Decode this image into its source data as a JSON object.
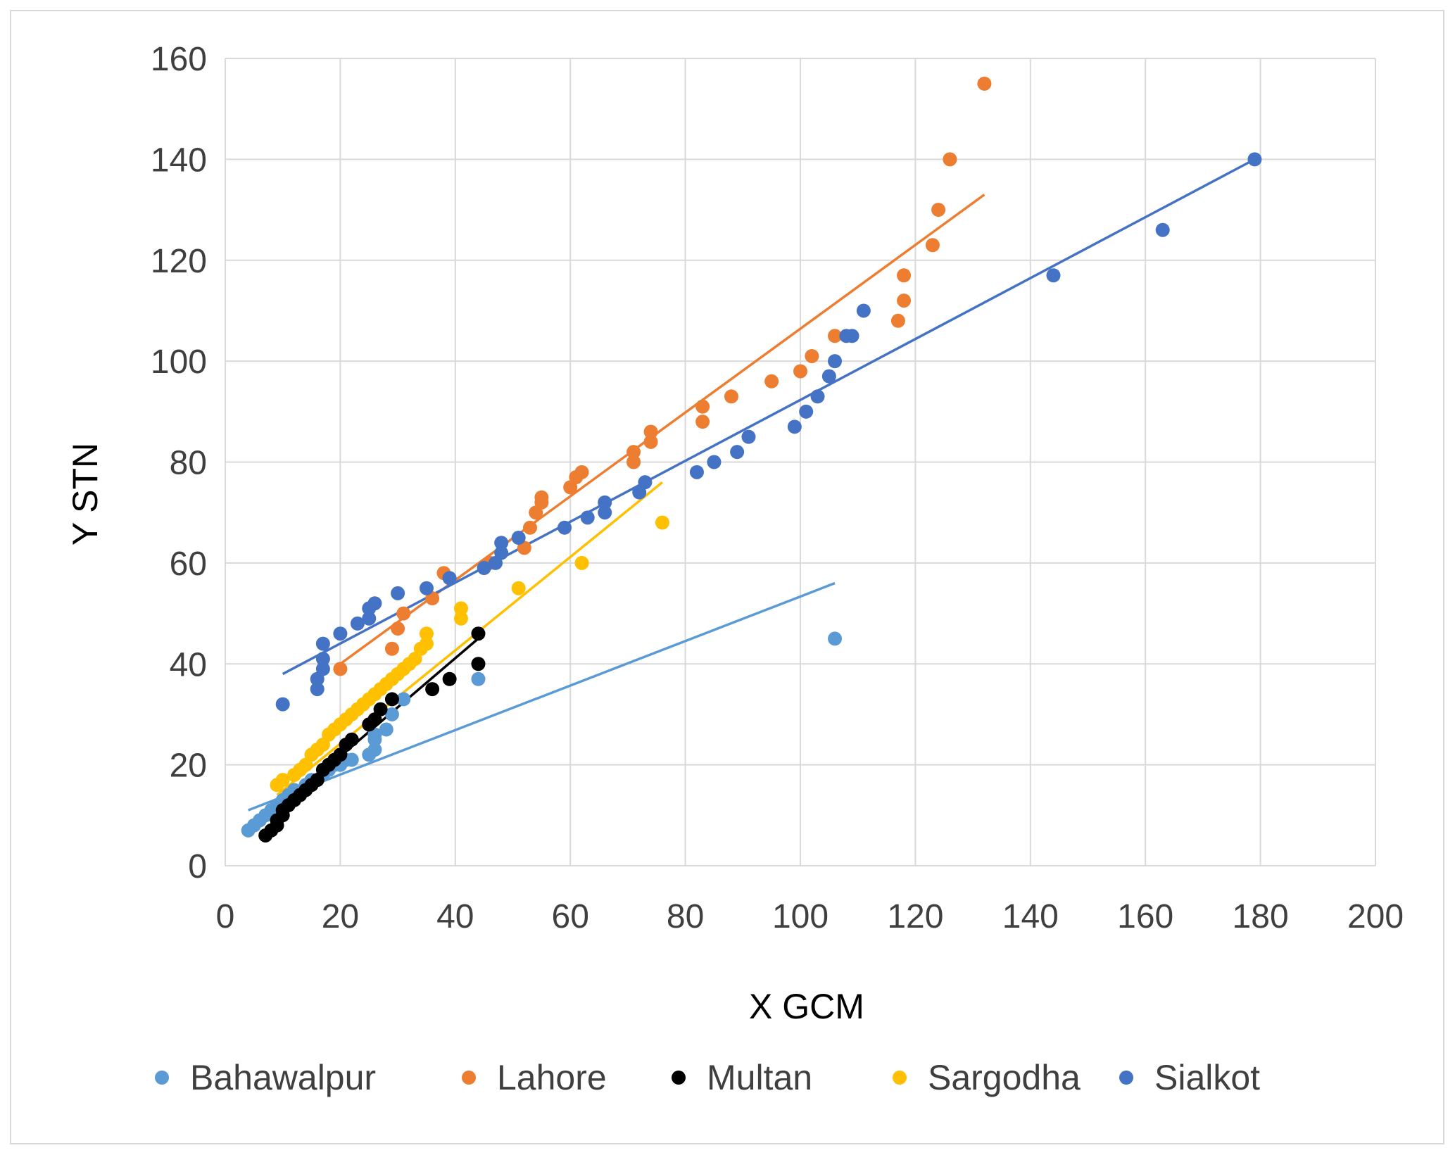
{
  "chart_data": {
    "type": "scatter",
    "title": "",
    "xlabel": "X GCM",
    "ylabel": "Y STN",
    "xlim": [
      0,
      200
    ],
    "ylim": [
      0,
      160
    ],
    "x_ticks": [
      "0",
      "20",
      "40",
      "60",
      "80",
      "100",
      "120",
      "140",
      "160",
      "180",
      "200"
    ],
    "y_ticks": [
      "0",
      "20",
      "40",
      "60",
      "80",
      "100",
      "120",
      "140",
      "160"
    ],
    "grid": true,
    "legend_position": "bottom",
    "series": [
      {
        "name": "Bahawalpur",
        "color": "#5b9bd5",
        "points": [
          [
            4,
            7
          ],
          [
            5,
            8
          ],
          [
            6,
            9
          ],
          [
            7,
            10
          ],
          [
            8,
            11
          ],
          [
            9,
            12
          ],
          [
            10,
            13
          ],
          [
            11,
            14
          ],
          [
            12,
            15
          ],
          [
            14,
            16
          ],
          [
            15,
            17
          ],
          [
            16,
            17
          ],
          [
            17,
            18
          ],
          [
            18,
            19
          ],
          [
            19,
            20
          ],
          [
            20,
            20
          ],
          [
            21,
            21
          ],
          [
            22,
            21
          ],
          [
            25,
            22
          ],
          [
            26,
            23
          ],
          [
            26,
            25
          ],
          [
            26,
            26
          ],
          [
            28,
            27
          ],
          [
            29,
            30
          ],
          [
            31,
            33
          ],
          [
            44,
            37
          ],
          [
            106,
            45
          ]
        ],
        "trend": [
          [
            4,
            11
          ],
          [
            106,
            56
          ]
        ]
      },
      {
        "name": "Lahore",
        "color": "#ed7d31",
        "points": [
          [
            20,
            39
          ],
          [
            29,
            43
          ],
          [
            30,
            47
          ],
          [
            31,
            50
          ],
          [
            36,
            53
          ],
          [
            38,
            58
          ],
          [
            46,
            60
          ],
          [
            52,
            63
          ],
          [
            53,
            67
          ],
          [
            54,
            70
          ],
          [
            55,
            72
          ],
          [
            55,
            73
          ],
          [
            60,
            75
          ],
          [
            61,
            77
          ],
          [
            62,
            78
          ],
          [
            71,
            80
          ],
          [
            71,
            82
          ],
          [
            74,
            84
          ],
          [
            74,
            86
          ],
          [
            83,
            88
          ],
          [
            83,
            91
          ],
          [
            88,
            93
          ],
          [
            95,
            96
          ],
          [
            100,
            98
          ],
          [
            102,
            101
          ],
          [
            106,
            105
          ],
          [
            117,
            108
          ],
          [
            118,
            112
          ],
          [
            118,
            117
          ],
          [
            123,
            123
          ],
          [
            124,
            130
          ],
          [
            126,
            140
          ],
          [
            132,
            155
          ]
        ],
        "trend": [
          [
            20,
            40
          ],
          [
            132,
            133
          ]
        ]
      },
      {
        "name": "Multan",
        "color": "#000000",
        "points": [
          [
            7,
            6
          ],
          [
            8,
            7
          ],
          [
            9,
            8
          ],
          [
            9,
            9
          ],
          [
            10,
            10
          ],
          [
            10,
            11
          ],
          [
            11,
            12
          ],
          [
            12,
            13
          ],
          [
            13,
            14
          ],
          [
            14,
            15
          ],
          [
            15,
            16
          ],
          [
            16,
            17
          ],
          [
            17,
            19
          ],
          [
            18,
            20
          ],
          [
            19,
            21
          ],
          [
            20,
            22
          ],
          [
            21,
            24
          ],
          [
            22,
            25
          ],
          [
            25,
            28
          ],
          [
            26,
            29
          ],
          [
            27,
            31
          ],
          [
            29,
            33
          ],
          [
            36,
            35
          ],
          [
            39,
            37
          ],
          [
            44,
            40
          ],
          [
            44,
            46
          ]
        ],
        "trend": [
          [
            8,
            10
          ],
          [
            45,
            46
          ]
        ]
      },
      {
        "name": "Sargodha",
        "color": "#ffc000",
        "points": [
          [
            9,
            16
          ],
          [
            10,
            17
          ],
          [
            12,
            18
          ],
          [
            13,
            19
          ],
          [
            14,
            20
          ],
          [
            15,
            22
          ],
          [
            16,
            23
          ],
          [
            17,
            24
          ],
          [
            18,
            26
          ],
          [
            19,
            27
          ],
          [
            20,
            28
          ],
          [
            21,
            29
          ],
          [
            22,
            30
          ],
          [
            23,
            31
          ],
          [
            24,
            32
          ],
          [
            25,
            33
          ],
          [
            26,
            34
          ],
          [
            27,
            35
          ],
          [
            28,
            36
          ],
          [
            29,
            37
          ],
          [
            30,
            38
          ],
          [
            31,
            39
          ],
          [
            32,
            40
          ],
          [
            33,
            41
          ],
          [
            34,
            43
          ],
          [
            35,
            44
          ],
          [
            35,
            46
          ],
          [
            41,
            49
          ],
          [
            41,
            51
          ],
          [
            51,
            55
          ],
          [
            62,
            60
          ],
          [
            76,
            68
          ]
        ],
        "trend": [
          [
            9,
            14
          ],
          [
            76,
            76
          ]
        ]
      },
      {
        "name": "Sialkot",
        "color": "#4472c4",
        "points": [
          [
            10,
            32
          ],
          [
            16,
            35
          ],
          [
            16,
            37
          ],
          [
            17,
            39
          ],
          [
            17,
            41
          ],
          [
            17,
            44
          ],
          [
            20,
            46
          ],
          [
            23,
            48
          ],
          [
            25,
            49
          ],
          [
            25,
            51
          ],
          [
            26,
            52
          ],
          [
            30,
            54
          ],
          [
            35,
            55
          ],
          [
            39,
            57
          ],
          [
            45,
            59
          ],
          [
            47,
            60
          ],
          [
            48,
            62
          ],
          [
            48,
            64
          ],
          [
            51,
            65
          ],
          [
            59,
            67
          ],
          [
            63,
            69
          ],
          [
            66,
            70
          ],
          [
            66,
            72
          ],
          [
            72,
            74
          ],
          [
            73,
            76
          ],
          [
            82,
            78
          ],
          [
            85,
            80
          ],
          [
            89,
            82
          ],
          [
            91,
            85
          ],
          [
            99,
            87
          ],
          [
            101,
            90
          ],
          [
            103,
            93
          ],
          [
            105,
            97
          ],
          [
            106,
            100
          ],
          [
            108,
            105
          ],
          [
            109,
            105
          ],
          [
            111,
            110
          ],
          [
            144,
            117
          ],
          [
            163,
            126
          ],
          [
            179,
            140
          ]
        ],
        "trend": [
          [
            10,
            38
          ],
          [
            179,
            140
          ]
        ]
      }
    ]
  }
}
